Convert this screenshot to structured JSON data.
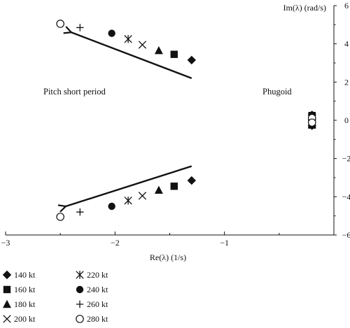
{
  "chart_data": {
    "type": "scatter",
    "xlabel": "Re(λ) (1/s)",
    "ylabel": "Im(λ) (rad/s)",
    "xlim": [
      -3,
      0
    ],
    "ylim": [
      -6,
      6
    ],
    "xticks": [
      -3,
      -2,
      -1
    ],
    "yticks": [
      -6,
      -4,
      -2,
      0,
      2,
      4,
      6
    ],
    "xtick_labels": [
      "−3",
      "−2",
      "−1"
    ],
    "ytick_labels": [
      "−6",
      "−4",
      "−2",
      "0",
      "2",
      "4",
      "6"
    ],
    "grid": false,
    "legend_position": "bottom-left, below plot",
    "annotations": [
      {
        "text": "Pitch short period",
        "x": -2.3,
        "y": 2.2
      },
      {
        "text": "Phugoid",
        "x": -0.55,
        "y": 2.2
      }
    ],
    "arrows": [
      {
        "from": [
          -1.3,
          2.2
        ],
        "to": [
          -2.4,
          4.6
        ]
      },
      {
        "from": [
          -1.3,
          -2.4
        ],
        "to": [
          -2.45,
          -4.5
        ]
      }
    ],
    "series": [
      {
        "name": "140 kt",
        "marker": "diamond-filled",
        "points": [
          [
            -1.3,
            3.15
          ],
          [
            -1.3,
            -3.15
          ],
          [
            -0.2,
            0.28
          ],
          [
            -0.2,
            -0.28
          ]
        ]
      },
      {
        "name": "160 kt",
        "marker": "square-filled",
        "points": [
          [
            -1.46,
            3.45
          ],
          [
            -1.46,
            -3.45
          ],
          [
            -0.2,
            0.25
          ],
          [
            -0.2,
            -0.25
          ]
        ]
      },
      {
        "name": "180 kt",
        "marker": "triangle-filled",
        "points": [
          [
            -1.6,
            3.65
          ],
          [
            -1.6,
            -3.65
          ],
          [
            -0.2,
            0.22
          ],
          [
            -0.2,
            -0.22
          ]
        ]
      },
      {
        "name": "200 kt",
        "marker": "x",
        "points": [
          [
            -1.75,
            3.95
          ],
          [
            -1.75,
            -3.95
          ],
          [
            -0.2,
            0.2
          ],
          [
            -0.2,
            -0.2
          ]
        ]
      },
      {
        "name": "220 kt",
        "marker": "asterisk",
        "points": [
          [
            -1.88,
            4.25
          ],
          [
            -1.88,
            -4.2
          ],
          [
            -0.2,
            0.18
          ],
          [
            -0.2,
            -0.18
          ]
        ]
      },
      {
        "name": "240 kt",
        "marker": "circle-filled",
        "points": [
          [
            -2.03,
            4.55
          ],
          [
            -2.03,
            -4.5
          ],
          [
            -0.2,
            0.16
          ],
          [
            -0.2,
            -0.16
          ]
        ]
      },
      {
        "name": "260 kt",
        "marker": "plus",
        "points": [
          [
            -2.32,
            4.85
          ],
          [
            -2.32,
            -4.8
          ],
          [
            -0.2,
            0.14
          ],
          [
            -0.2,
            -0.14
          ]
        ]
      },
      {
        "name": "280 kt",
        "marker": "circle-open",
        "points": [
          [
            -2.5,
            5.05
          ],
          [
            -2.5,
            -5.05
          ],
          [
            -0.2,
            0.12
          ],
          [
            -0.2,
            -0.12
          ]
        ]
      }
    ]
  }
}
